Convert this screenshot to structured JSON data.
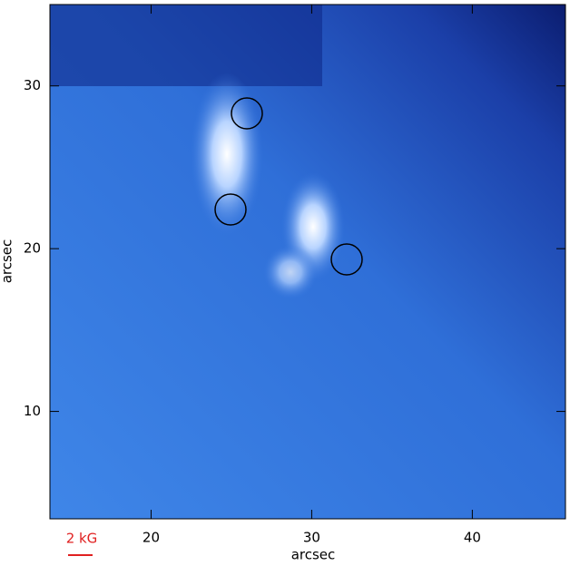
{
  "chart_data": {
    "type": "image",
    "xlabel": "arcsec",
    "ylabel": "arcsec",
    "xlim": [
      13.7,
      45.8
    ],
    "ylim": [
      3.4,
      35.0
    ],
    "xticks": [
      20,
      30,
      40
    ],
    "yticks": [
      10,
      20,
      30
    ],
    "scale_label": "2 kG",
    "scale_color": "#e02020"
  }
}
